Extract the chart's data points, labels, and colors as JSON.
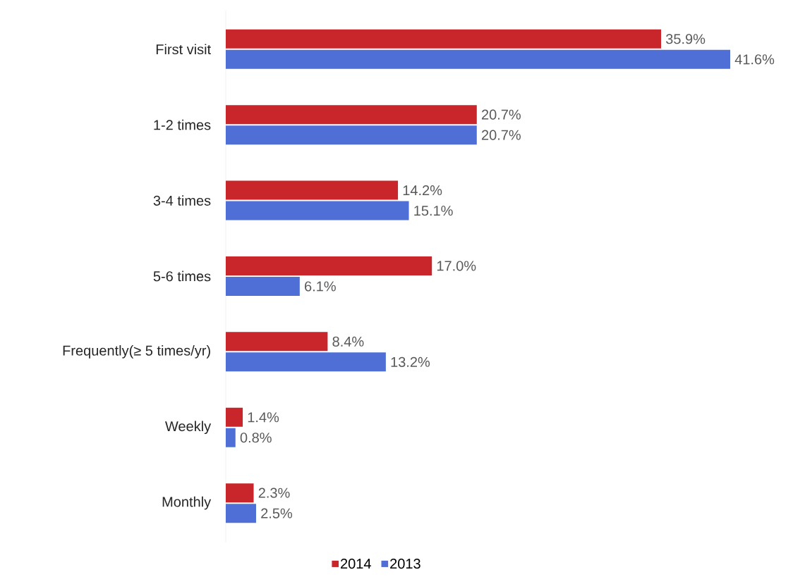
{
  "chart_data": {
    "type": "bar",
    "orientation": "horizontal",
    "legend": "bottom",
    "categories": [
      "First visit",
      "1-2 times",
      "3-4 times",
      "5-6 times",
      "Frequently(≥ 5 times/yr)",
      "Weekly",
      "Monthly"
    ],
    "series": [
      {
        "name": "2014",
        "color": "#c8262b",
        "values": [
          35.9,
          20.7,
          14.2,
          17.0,
          8.4,
          1.4,
          2.3
        ],
        "value_labels": [
          "35.9%",
          "20.7%",
          "14.2%",
          "17.0%",
          "8.4%",
          "1.4%",
          "2.3%"
        ]
      },
      {
        "name": "2013",
        "color": "#4f6fd6",
        "values": [
          41.6,
          20.7,
          15.1,
          6.1,
          13.2,
          0.8,
          2.5
        ],
        "value_labels": [
          "41.6%",
          "20.7%",
          "15.1%",
          "6.1%",
          "13.2%",
          "0.8%",
          "2.5%"
        ]
      }
    ]
  }
}
